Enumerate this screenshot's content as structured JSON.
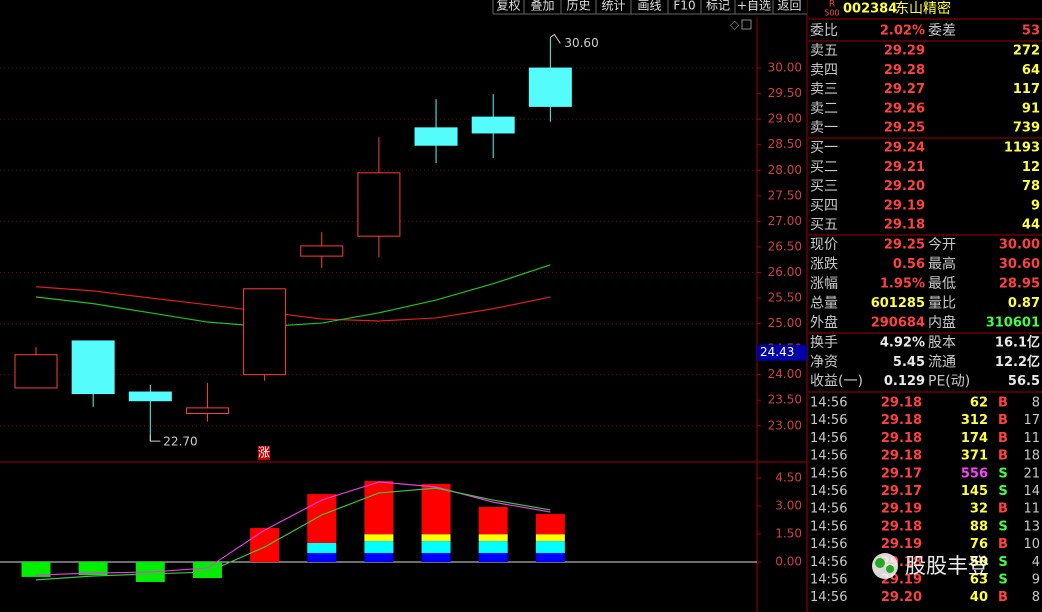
{
  "toolbar": [
    "复权",
    "叠加",
    "历史",
    "统计",
    "画线",
    "F10",
    "标记",
    "+自选",
    "返回"
  ],
  "header": {
    "badge_top": "R",
    "badge_bottom": "500",
    "code": "002384",
    "name": "东山精密"
  },
  "ratio_row": [
    "委比",
    "2.02%",
    "委差",
    "53"
  ],
  "order_book": [
    [
      "卖五",
      "29.29",
      "272"
    ],
    [
      "卖四",
      "29.28",
      "64"
    ],
    [
      "卖三",
      "29.27",
      "117"
    ],
    [
      "卖二",
      "29.26",
      "91"
    ],
    [
      "卖一",
      "29.25",
      "739"
    ],
    [
      "买一",
      "29.24",
      "1193"
    ],
    [
      "买二",
      "29.21",
      "12"
    ],
    [
      "买三",
      "29.20",
      "78"
    ],
    [
      "买四",
      "29.19",
      "9"
    ],
    [
      "买五",
      "29.18",
      "44"
    ]
  ],
  "quote": [
    [
      "现价",
      "29.25",
      "今开",
      "30.00"
    ],
    [
      "涨跌",
      "0.56",
      "最高",
      "30.60"
    ],
    [
      "涨幅",
      "1.95%",
      "最低",
      "28.95"
    ],
    [
      "总量",
      "601285",
      "量比",
      "0.87"
    ],
    [
      "外盘",
      "290684",
      "内盘",
      "310601"
    ],
    [
      "换手",
      "4.92%",
      "股本",
      "16.1亿"
    ],
    [
      "净资",
      "5.45",
      "流通",
      "12.2亿"
    ],
    [
      "收益(一)",
      "0.129",
      "PE(动)",
      "56.5"
    ]
  ],
  "trades": [
    [
      "14:56",
      "29.18",
      "62",
      "B",
      "8"
    ],
    [
      "14:56",
      "29.18",
      "312",
      "B",
      "17"
    ],
    [
      "14:56",
      "29.18",
      "174",
      "B",
      "11"
    ],
    [
      "14:56",
      "29.18",
      "371",
      "B",
      "18"
    ],
    [
      "14:56",
      "29.17",
      "556",
      "S",
      "21"
    ],
    [
      "14:56",
      "29.17",
      "145",
      "S",
      "14"
    ],
    [
      "14:56",
      "29.19",
      "32",
      "B",
      "11"
    ],
    [
      "14:56",
      "29.18",
      "88",
      "S",
      "13"
    ],
    [
      "14:56",
      "29.19",
      "76",
      "B",
      "10"
    ],
    [
      "14:56",
      "29.18",
      "50",
      "S",
      "4"
    ],
    [
      "14:56",
      "29.19",
      "63",
      "S",
      "9"
    ],
    [
      "14:56",
      "29.20",
      "40",
      "B",
      "8"
    ]
  ],
  "watermark": "股股丰登",
  "kline": {
    "type": "candlestick",
    "up_color": "#ff3c3c",
    "down_color": "#54fcfc",
    "candles": [
      {
        "open": 23.74,
        "close": 24.39,
        "high": 24.54,
        "low": 23.74
      },
      {
        "open": 24.66,
        "close": 23.63,
        "high": 24.66,
        "low": 23.37
      },
      {
        "open": 23.66,
        "close": 23.49,
        "high": 23.8,
        "low": 22.7
      },
      {
        "open": 23.24,
        "close": 23.35,
        "high": 23.84,
        "low": 23.08
      },
      {
        "open": 24.0,
        "close": 25.68,
        "high": 25.68,
        "low": 23.88
      },
      {
        "open": 26.32,
        "close": 26.52,
        "high": 26.79,
        "low": 26.09
      },
      {
        "open": 26.71,
        "close": 27.95,
        "high": 28.65,
        "low": 26.3
      },
      {
        "open": 28.83,
        "close": 28.49,
        "high": 29.39,
        "low": 28.14
      },
      {
        "open": 29.04,
        "close": 28.73,
        "high": 29.49,
        "low": 28.24
      },
      {
        "open": 30.0,
        "close": 29.25,
        "high": 30.6,
        "low": 28.95
      }
    ],
    "lines": [
      {
        "color": "#d82020",
        "values": [
          25.72,
          25.64,
          25.5,
          25.37,
          25.23,
          25.09,
          25.05,
          25.11,
          25.29,
          25.52
        ]
      },
      {
        "color": "#20c020",
        "values": [
          25.52,
          25.39,
          25.21,
          25.03,
          24.94,
          25.01,
          25.21,
          25.46,
          25.78,
          26.15
        ]
      }
    ],
    "high_label": {
      "value": 30.6,
      "label": "30.60"
    },
    "low_label": {
      "value": 22.7,
      "label": "22.70"
    },
    "marker": "涨",
    "cursor": 24.43,
    "ylim": [
      22.33,
      30.98
    ],
    "yticks": [
      {
        "value": 30,
        "label": "30.00"
      },
      {
        "value": 29.5,
        "label": "29.50"
      },
      {
        "value": 29,
        "label": "29.00"
      },
      {
        "value": 28.5,
        "label": "28.50"
      },
      {
        "value": 28,
        "label": "28.00"
      },
      {
        "value": 27.5,
        "label": "27.50"
      },
      {
        "value": 27,
        "label": "27.00"
      },
      {
        "value": 26.5,
        "label": "26.50"
      },
      {
        "value": 26,
        "label": "26.00"
      },
      {
        "value": 25.5,
        "label": "25.50"
      },
      {
        "value": 25,
        "label": "25.00"
      },
      {
        "value": 24.5,
        "label": "24.50"
      },
      {
        "value": 24,
        "label": "24.00"
      },
      {
        "value": 23.5,
        "label": "23.50"
      },
      {
        "value": 23,
        "label": "23.00"
      }
    ],
    "grid": true
  },
  "indicator": {
    "type": "bar",
    "series": [
      {
        "color": "#0000ff",
        "values": [
          null,
          null,
          null,
          null,
          null,
          0.48,
          0.48,
          0.48,
          0.48,
          0.48
        ]
      },
      {
        "color": "#00ffff",
        "values": [
          null,
          null,
          null,
          null,
          null,
          0.54,
          0.64,
          0.64,
          0.64,
          0.64
        ]
      },
      {
        "color": "#ffff00",
        "values": [
          null,
          null,
          null,
          null,
          null,
          null,
          0.37,
          0.37,
          0.37,
          0.37
        ]
      },
      {
        "color": "#ff0000",
        "values": [
          null,
          null,
          null,
          null,
          1.82,
          2.62,
          2.85,
          2.69,
          1.46,
          1.08
        ]
      },
      {
        "color": "#00ee00",
        "values": [
          -0.8,
          -0.7,
          -1.07,
          -0.86,
          null,
          null,
          null,
          null,
          null,
          null
        ]
      }
    ],
    "lines": [
      {
        "color": "#e040e0",
        "values": [
          -0.7,
          -0.59,
          -0.54,
          -0.32,
          1.71,
          3.32,
          4.29,
          4.02,
          3.21,
          2.68
        ]
      },
      {
        "color": "#40c040",
        "values": [
          -0.96,
          -0.75,
          -0.64,
          -0.54,
          0.8,
          2.52,
          3.7,
          3.96,
          3.32,
          2.79
        ]
      }
    ],
    "ylim": [
      -2.68,
      5.36
    ],
    "yticks": [
      {
        "value": 4.5,
        "label": "4.50"
      },
      {
        "value": 3,
        "label": "3.00"
      },
      {
        "value": 1.5,
        "label": "1.50"
      },
      {
        "value": 0,
        "label": "0.00"
      }
    ]
  }
}
